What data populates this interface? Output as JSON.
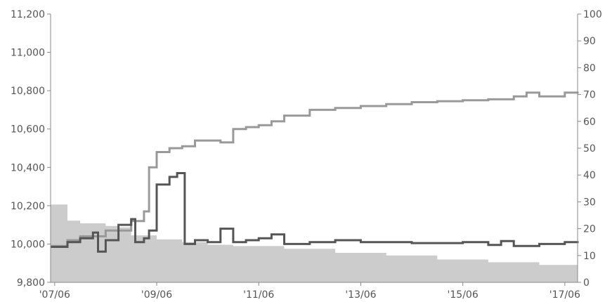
{
  "chart_data": {
    "type": "line",
    "title": "",
    "xlabel": "",
    "ylabel": "",
    "y2label": "",
    "xlim": [
      2007.42,
      2017.75
    ],
    "ylim": [
      9800,
      11200
    ],
    "y2lim": [
      0,
      100
    ],
    "x_ticks": [
      {
        "x": 2007.5,
        "label": "'07/06"
      },
      {
        "x": 2009.5,
        "label": "'09/06"
      },
      {
        "x": 2011.5,
        "label": "'11/06"
      },
      {
        "x": 2013.5,
        "label": "'13/06"
      },
      {
        "x": 2015.5,
        "label": "'15/06"
      },
      {
        "x": 2017.5,
        "label": "'17/06"
      }
    ],
    "y_ticks": [
      9800,
      10000,
      10200,
      10400,
      10600,
      10800,
      11000,
      11200
    ],
    "y_tick_labels": [
      "9,800",
      "10,000",
      "10,200",
      "10,400",
      "10,600",
      "10,800",
      "11,000",
      "11,200"
    ],
    "y2_ticks": [
      0,
      10,
      20,
      30,
      40,
      50,
      60,
      70,
      80,
      90,
      100
    ],
    "y2_tick_labels": [
      "0",
      "10",
      "20",
      "30",
      "40",
      "50",
      "60",
      "70",
      "80",
      "90",
      "100"
    ],
    "grid": false,
    "legend": "none",
    "series": [
      {
        "axis": "right",
        "style": "area",
        "color": "#cccccc",
        "x": [
          2007.42,
          2007.58,
          2007.75,
          2008.0,
          2008.5,
          2008.75,
          2009.0,
          2009.5,
          2010.0,
          2010.5,
          2011.0,
          2012.0,
          2013.0,
          2014.0,
          2015.0,
          2016.0,
          2017.0,
          2017.75
        ],
        "y": [
          29,
          29,
          23,
          22,
          21,
          20.5,
          17.5,
          16,
          15,
          14,
          13.5,
          12.5,
          11,
          10,
          8.5,
          7.5,
          6.5,
          5.5
        ]
      },
      {
        "axis": "left",
        "style": "step",
        "color": "#999999",
        "x": [
          2007.42,
          2007.75,
          2008.0,
          2008.5,
          2009.0,
          2009.25,
          2009.35,
          2009.5,
          2009.75,
          2010.0,
          2010.25,
          2010.75,
          2011.0,
          2011.25,
          2011.5,
          2011.75,
          2012.0,
          2012.5,
          2013.0,
          2013.5,
          2014.0,
          2014.5,
          2015.0,
          2015.5,
          2016.0,
          2016.5,
          2016.75,
          2017.0,
          2017.5,
          2017.75
        ],
        "y": [
          9990,
          10020,
          10040,
          10070,
          10120,
          10170,
          10400,
          10480,
          10500,
          10510,
          10540,
          10530,
          10600,
          10610,
          10620,
          10640,
          10670,
          10700,
          10710,
          10720,
          10730,
          10740,
          10745,
          10750,
          10755,
          10770,
          10790,
          10770,
          10790,
          10795
        ]
      },
      {
        "axis": "left",
        "style": "step",
        "color": "#555555",
        "x": [
          2007.42,
          2007.75,
          2008.0,
          2008.25,
          2008.35,
          2008.5,
          2008.75,
          2009.0,
          2009.08,
          2009.25,
          2009.35,
          2009.5,
          2009.75,
          2009.9,
          2010.05,
          2010.25,
          2010.5,
          2010.75,
          2011.0,
          2011.25,
          2011.5,
          2011.75,
          2012.0,
          2012.5,
          2013.0,
          2013.5,
          2014.0,
          2014.5,
          2015.0,
          2015.5,
          2016.0,
          2016.25,
          2016.5,
          2017.0,
          2017.5,
          2017.75
        ],
        "y": [
          9985,
          10010,
          10030,
          10060,
          9960,
          10020,
          10100,
          10130,
          10010,
          10030,
          10070,
          10310,
          10350,
          10370,
          10000,
          10020,
          10010,
          10080,
          10010,
          10020,
          10030,
          10050,
          10000,
          10010,
          10020,
          10010,
          10010,
          10005,
          10005,
          10010,
          9995,
          10015,
          9990,
          10000,
          10010,
          10015
        ]
      }
    ]
  }
}
